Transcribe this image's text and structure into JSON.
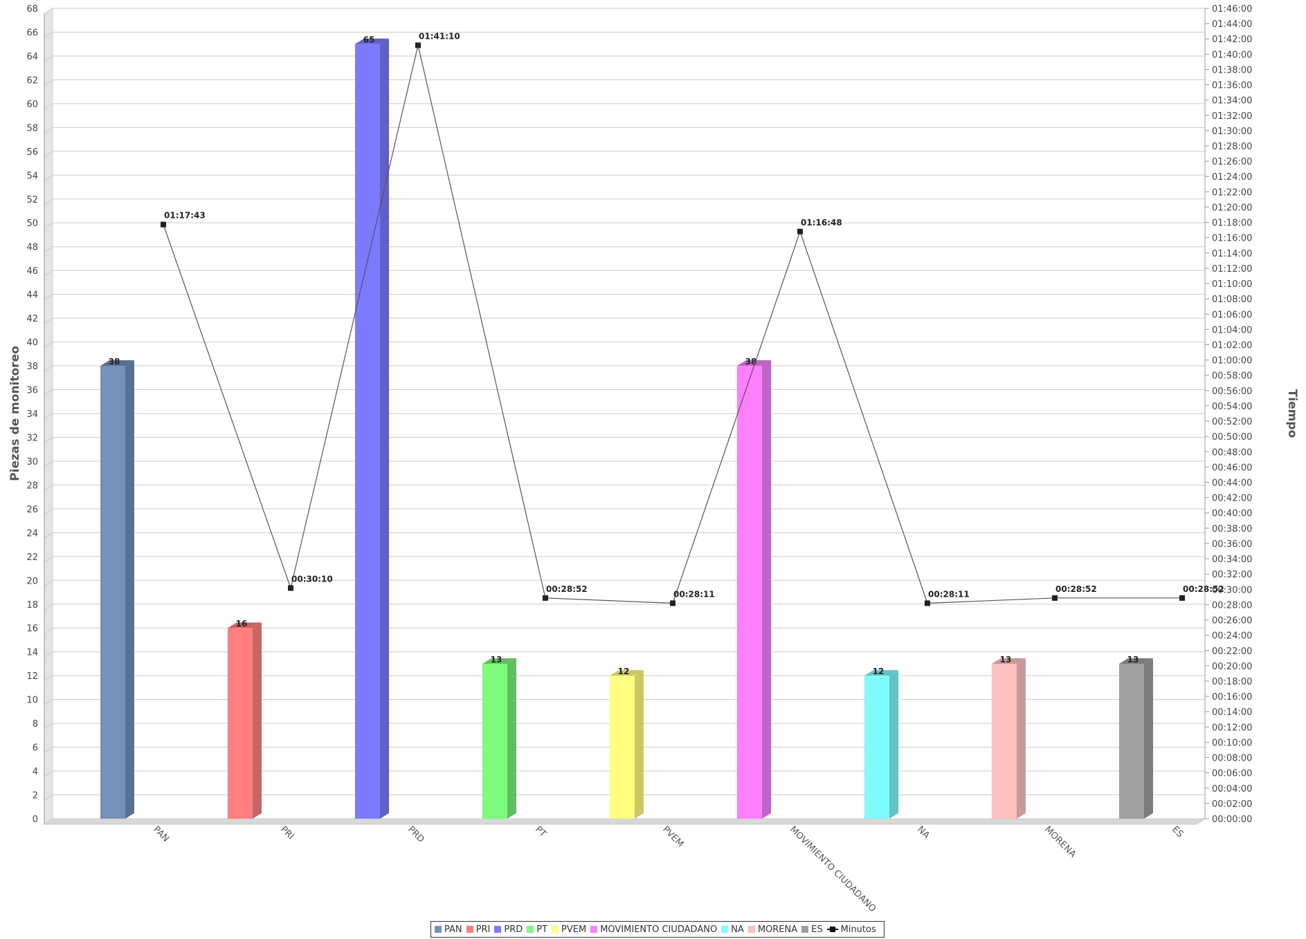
{
  "chart_data": {
    "type": "bar",
    "categories": [
      "PAN",
      "PRI",
      "PRD",
      "PT",
      "PVEM",
      "MOVIMIENTO CIUDADANO",
      "NA",
      "MORENA",
      "ES"
    ],
    "bars": {
      "values": [
        38,
        16,
        65,
        13,
        12,
        38,
        12,
        13,
        13
      ],
      "labels": [
        "38",
        "16",
        "65",
        "13",
        "12",
        "38",
        "12",
        "13",
        "13"
      ],
      "colors": [
        "#7592bb",
        "#ff7f7f",
        "#7b7bff",
        "#7dfc7d",
        "#ffff7f",
        "#ff7fff",
        "#7ffcfc",
        "#ffbfbf",
        "#a0a0a0"
      ],
      "side_colors": [
        "#5a7090",
        "#c86464",
        "#6060c8",
        "#60c060",
        "#c8c864",
        "#c064c8",
        "#60c4c4",
        "#c89a9a",
        "#7c7c7c"
      ]
    },
    "line": {
      "name": "Minutos",
      "values": [
        "01:17:43",
        "00:30:10",
        "01:41:10",
        "00:28:52",
        "00:28:11",
        "01:16:48",
        "00:28:11",
        "00:28:52",
        "00:28:52"
      ],
      "color": "#555555"
    },
    "ylabel": "Piezas de monitoreo",
    "y2label": "Tiempo",
    "ylim": [
      0,
      68
    ],
    "y_ticks": [
      "0",
      "2",
      "4",
      "6",
      "8",
      "10",
      "12",
      "14",
      "16",
      "18",
      "20",
      "22",
      "24",
      "26",
      "28",
      "30",
      "32",
      "34",
      "36",
      "38",
      "40",
      "42",
      "44",
      "46",
      "48",
      "50",
      "52",
      "54",
      "56",
      "58",
      "60",
      "62",
      "64",
      "66",
      "68"
    ],
    "y2lim": [
      "00:00:00",
      "01:46:00"
    ],
    "y2_ticks": [
      "00:00:00",
      "00:02:00",
      "00:04:00",
      "00:06:00",
      "00:08:00",
      "00:10:00",
      "00:12:00",
      "00:14:00",
      "00:16:00",
      "00:18:00",
      "00:20:00",
      "00:22:00",
      "00:24:00",
      "00:26:00",
      "00:28:00",
      "00:30:00",
      "00:32:00",
      "00:34:00",
      "00:36:00",
      "00:38:00",
      "00:40:00",
      "00:42:00",
      "00:44:00",
      "00:46:00",
      "00:48:00",
      "00:50:00",
      "00:52:00",
      "00:54:00",
      "00:56:00",
      "00:58:00",
      "01:00:00",
      "01:02:00",
      "01:04:00",
      "01:06:00",
      "01:08:00",
      "01:10:00",
      "01:12:00",
      "01:14:00",
      "01:16:00",
      "01:18:00",
      "01:20:00",
      "01:22:00",
      "01:24:00",
      "01:26:00",
      "01:28:00",
      "01:30:00",
      "01:32:00",
      "01:34:00",
      "01:36:00",
      "01:38:00",
      "01:40:00",
      "01:42:00",
      "01:44:00",
      "01:46:00"
    ],
    "grid": true,
    "legend_position": "bottom-center",
    "legend": [
      "PAN",
      "PRI",
      "PRD",
      "PT",
      "PVEM",
      "MOVIMIENTO CIUDADANO",
      "NA",
      "MORENA",
      "ES",
      "Minutos"
    ]
  }
}
